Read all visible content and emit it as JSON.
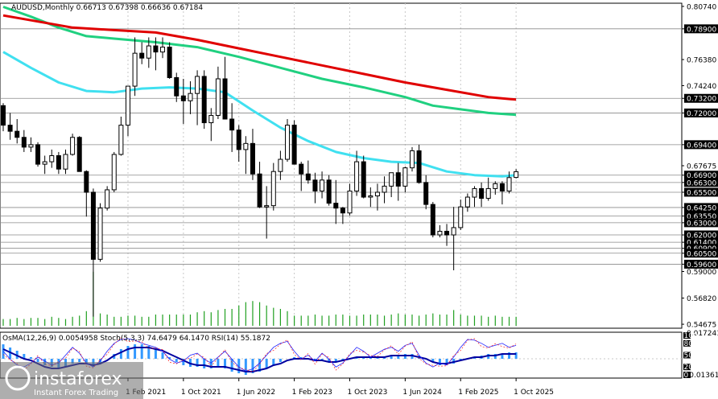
{
  "header": {
    "main": "AUDUSD,Monthly  0.66713 0.67398 0.66636 0.67184",
    "osc": "OsMA(12,26,9) 0.0054958  Stoch(5,3,3) 74.6479 64.1470  RSI(14) 55.1872"
  },
  "watermark": {
    "brand": "instaforex",
    "tagline": "Instant Forex Trading"
  },
  "colors": {
    "bull": "#000000",
    "bear": "#000000",
    "ma_red": "#e00000",
    "ma_green": "#20d080",
    "ma_cyan": "#40e0f0",
    "volume": "#20a020",
    "osma": "#3399ff",
    "osc_line": "#0000a0",
    "stoch_main": "#2020ff",
    "stoch_signal": "#ff2020",
    "rsi": "#4040ff",
    "label_box": "#000000"
  },
  "chart_data": {
    "type": "candlestick",
    "symbol": "AUDUSD",
    "timeframe": "Monthly",
    "ylim": [
      0.5435,
      0.81
    ],
    "price_ticks": [
      "0.80740",
      "0.78900",
      "0.76380",
      "0.74240",
      "0.73200",
      "0.72000",
      "0.69400",
      "0.67675",
      "0.66900",
      "0.66300",
      "0.65500",
      "0.64250",
      "0.63550",
      "0.63000",
      "0.62000",
      "0.61400",
      "0.60900",
      "0.60500",
      "0.59600",
      "0.59000",
      "0.56820",
      "0.54675"
    ],
    "level_lines": [
      0.789,
      0.732,
      0.72,
      0.694,
      0.669,
      0.663,
      0.655,
      0.6425,
      0.6355,
      0.63,
      0.62,
      0.614,
      0.609,
      0.605,
      0.596
    ],
    "x_labels": [
      "1 Feb 2021",
      "1 Oct 2021",
      "1 Jun 2022",
      "1 Feb 2023",
      "1 Oct 2023",
      "1 Jun 2024",
      "1 Feb 2025",
      "1 Oct 2025"
    ],
    "x_label_index": [
      18,
      26,
      34,
      42,
      50,
      58,
      66,
      74
    ],
    "ohlc": [
      [
        0.726,
        0.728,
        0.705,
        0.71
      ],
      [
        0.71,
        0.72,
        0.698,
        0.705
      ],
      [
        0.705,
        0.715,
        0.695,
        0.7
      ],
      [
        0.7,
        0.706,
        0.688,
        0.692
      ],
      [
        0.692,
        0.7,
        0.688,
        0.694
      ],
      [
        0.694,
        0.696,
        0.676,
        0.678
      ],
      [
        0.678,
        0.685,
        0.67,
        0.68
      ],
      [
        0.68,
        0.69,
        0.675,
        0.685
      ],
      [
        0.685,
        0.688,
        0.67,
        0.674
      ],
      [
        0.674,
        0.69,
        0.67,
        0.686
      ],
      [
        0.686,
        0.703,
        0.685,
        0.7
      ],
      [
        0.7,
        0.701,
        0.672,
        0.672
      ],
      [
        0.672,
        0.673,
        0.635,
        0.655
      ],
      [
        0.655,
        0.658,
        0.553,
        0.6
      ],
      [
        0.6,
        0.646,
        0.598,
        0.642
      ],
      [
        0.642,
        0.66,
        0.64,
        0.657
      ],
      [
        0.657,
        0.688,
        0.655,
        0.686
      ],
      [
        0.686,
        0.717,
        0.685,
        0.71
      ],
      [
        0.71,
        0.742,
        0.701,
        0.742
      ],
      [
        0.742,
        0.782,
        0.734,
        0.769
      ],
      [
        0.769,
        0.778,
        0.76,
        0.765
      ],
      [
        0.765,
        0.782,
        0.757,
        0.775
      ],
      [
        0.775,
        0.782,
        0.755,
        0.77
      ],
      [
        0.77,
        0.782,
        0.765,
        0.774
      ],
      [
        0.774,
        0.778,
        0.748,
        0.749
      ],
      [
        0.749,
        0.753,
        0.729,
        0.734
      ],
      [
        0.734,
        0.748,
        0.711,
        0.73
      ],
      [
        0.73,
        0.746,
        0.719,
        0.736
      ],
      [
        0.736,
        0.755,
        0.71,
        0.75
      ],
      [
        0.75,
        0.755,
        0.707,
        0.712
      ],
      [
        0.712,
        0.724,
        0.697,
        0.718
      ],
      [
        0.718,
        0.758,
        0.715,
        0.748
      ],
      [
        0.748,
        0.766,
        0.715,
        0.715
      ],
      [
        0.715,
        0.728,
        0.688,
        0.706
      ],
      [
        0.706,
        0.71,
        0.68,
        0.69
      ],
      [
        0.69,
        0.701,
        0.67,
        0.695
      ],
      [
        0.695,
        0.707,
        0.665,
        0.67
      ],
      [
        0.67,
        0.68,
        0.642,
        0.643
      ],
      [
        0.643,
        0.66,
        0.617,
        0.644
      ],
      [
        0.644,
        0.679,
        0.64,
        0.672
      ],
      [
        0.672,
        0.689,
        0.665,
        0.682
      ],
      [
        0.682,
        0.715,
        0.68,
        0.71
      ],
      [
        0.71,
        0.714,
        0.678,
        0.678
      ],
      [
        0.678,
        0.68,
        0.656,
        0.67
      ],
      [
        0.67,
        0.681,
        0.662,
        0.665
      ],
      [
        0.665,
        0.671,
        0.646,
        0.656
      ],
      [
        0.656,
        0.672,
        0.65,
        0.665
      ],
      [
        0.665,
        0.669,
        0.644,
        0.646
      ],
      [
        0.646,
        0.665,
        0.629,
        0.642
      ],
      [
        0.642,
        0.643,
        0.629,
        0.638
      ],
      [
        0.638,
        0.662,
        0.636,
        0.656
      ],
      [
        0.656,
        0.689,
        0.652,
        0.68
      ],
      [
        0.68,
        0.685,
        0.65,
        0.651
      ],
      [
        0.651,
        0.659,
        0.643,
        0.652
      ],
      [
        0.652,
        0.662,
        0.64,
        0.655
      ],
      [
        0.655,
        0.668,
        0.646,
        0.66
      ],
      [
        0.66,
        0.671,
        0.651,
        0.671
      ],
      [
        0.671,
        0.679,
        0.648,
        0.66
      ],
      [
        0.66,
        0.676,
        0.655,
        0.675
      ],
      [
        0.675,
        0.692,
        0.672,
        0.689
      ],
      [
        0.689,
        0.694,
        0.662,
        0.663
      ],
      [
        0.663,
        0.669,
        0.641,
        0.645
      ],
      [
        0.645,
        0.647,
        0.618,
        0.62
      ],
      [
        0.62,
        0.628,
        0.618,
        0.623
      ],
      [
        0.623,
        0.629,
        0.611,
        0.62
      ],
      [
        0.62,
        0.643,
        0.591,
        0.626
      ],
      [
        0.626,
        0.649,
        0.624,
        0.643
      ],
      [
        0.643,
        0.654,
        0.639,
        0.651
      ],
      [
        0.651,
        0.66,
        0.643,
        0.658
      ],
      [
        0.658,
        0.663,
        0.643,
        0.65
      ],
      [
        0.65,
        0.667,
        0.648,
        0.658
      ],
      [
        0.658,
        0.664,
        0.653,
        0.662
      ],
      [
        0.662,
        0.664,
        0.645,
        0.656
      ],
      [
        0.656,
        0.672,
        0.654,
        0.667
      ],
      [
        0.66713,
        0.67398,
        0.66636,
        0.67184
      ]
    ],
    "ma_red": [
      [
        0,
        0.8
      ],
      [
        4,
        0.796
      ],
      [
        10,
        0.79
      ],
      [
        16,
        0.788
      ],
      [
        22,
        0.786
      ],
      [
        28,
        0.78
      ],
      [
        34,
        0.773
      ],
      [
        40,
        0.766
      ],
      [
        46,
        0.759
      ],
      [
        52,
        0.752
      ],
      [
        58,
        0.745
      ],
      [
        64,
        0.739
      ],
      [
        70,
        0.733
      ],
      [
        74,
        0.731
      ]
    ],
    "ma_green": [
      [
        0,
        0.807
      ],
      [
        4,
        0.799
      ],
      [
        8,
        0.79
      ],
      [
        12,
        0.783
      ],
      [
        16,
        0.781
      ],
      [
        22,
        0.778
      ],
      [
        28,
        0.774
      ],
      [
        34,
        0.766
      ],
      [
        40,
        0.757
      ],
      [
        46,
        0.748
      ],
      [
        52,
        0.741
      ],
      [
        58,
        0.733
      ],
      [
        62,
        0.726
      ],
      [
        66,
        0.723
      ],
      [
        70,
        0.72
      ],
      [
        74,
        0.7185
      ]
    ],
    "ma_cyan": [
      [
        0,
        0.77
      ],
      [
        4,
        0.757
      ],
      [
        8,
        0.745
      ],
      [
        12,
        0.738
      ],
      [
        16,
        0.737
      ],
      [
        20,
        0.74
      ],
      [
        24,
        0.741
      ],
      [
        28,
        0.74
      ],
      [
        32,
        0.737
      ],
      [
        36,
        0.722
      ],
      [
        40,
        0.708
      ],
      [
        44,
        0.697
      ],
      [
        48,
        0.688
      ],
      [
        52,
        0.683
      ],
      [
        56,
        0.68
      ],
      [
        60,
        0.679
      ],
      [
        64,
        0.672
      ],
      [
        68,
        0.669
      ],
      [
        72,
        0.668
      ],
      [
        74,
        0.669
      ]
    ],
    "volume": [
      0.06,
      0.06,
      0.07,
      0.06,
      0.07,
      0.07,
      0.06,
      0.08,
      0.07,
      0.06,
      0.08,
      0.09,
      0.13,
      0.48,
      0.11,
      0.1,
      0.08,
      0.08,
      0.09,
      0.09,
      0.08,
      0.08,
      0.1,
      0.1,
      0.1,
      0.1,
      0.1,
      0.1,
      0.12,
      0.13,
      0.12,
      0.14,
      0.15,
      0.15,
      0.18,
      0.21,
      0.22,
      0.21,
      0.18,
      0.16,
      0.15,
      0.13,
      0.09,
      0.09,
      0.09,
      0.1,
      0.09,
      0.09,
      0.1,
      0.1,
      0.09,
      0.09,
      0.1,
      0.1,
      0.1,
      0.09,
      0.1,
      0.11,
      0.1,
      0.1,
      0.09,
      0.1,
      0.11,
      0.1,
      0.1,
      0.14,
      0.1,
      0.09,
      0.09,
      0.09,
      0.08,
      0.09,
      0.08,
      0.08,
      0.08
    ],
    "osma": [
      0.9,
      0.7,
      0.5,
      0.3,
      0.1,
      -0.2,
      -0.4,
      -0.5,
      -0.6,
      -0.5,
      -0.3,
      -0.2,
      -0.3,
      -0.5,
      -0.3,
      0.0,
      0.3,
      0.6,
      0.8,
      0.9,
      0.9,
      0.8,
      0.6,
      0.4,
      0.1,
      -0.2,
      -0.4,
      -0.5,
      -0.5,
      -0.6,
      -0.6,
      -0.5,
      -0.6,
      -0.8,
      -0.9,
      -1.0,
      -0.9,
      -0.8,
      -0.6,
      -0.4,
      -0.2,
      0.0,
      0.1,
      0.1,
      0.0,
      -0.1,
      -0.1,
      -0.2,
      -0.2,
      -0.1,
      0.0,
      0.1,
      0.1,
      0.1,
      0.1,
      0.1,
      0.2,
      0.2,
      0.3,
      0.3,
      0.2,
      0.0,
      -0.2,
      -0.4,
      -0.4,
      -0.3,
      -0.1,
      0.0,
      0.1,
      0.2,
      0.3,
      0.3,
      0.3,
      0.4,
      0.4
    ],
    "osc_line": [
      0.6,
      0.4,
      0.2,
      0.0,
      -0.1,
      -0.3,
      -0.5,
      -0.6,
      -0.6,
      -0.5,
      -0.4,
      -0.3,
      -0.3,
      -0.4,
      -0.3,
      -0.1,
      0.2,
      0.4,
      0.6,
      0.7,
      0.7,
      0.7,
      0.6,
      0.5,
      0.3,
      0.1,
      -0.1,
      -0.3,
      -0.4,
      -0.4,
      -0.5,
      -0.5,
      -0.5,
      -0.6,
      -0.7,
      -0.8,
      -0.8,
      -0.7,
      -0.6,
      -0.4,
      -0.3,
      -0.1,
      0.0,
      0.0,
      0.0,
      -0.1,
      -0.1,
      -0.2,
      -0.2,
      -0.1,
      0.0,
      0.1,
      0.1,
      0.1,
      0.1,
      0.1,
      0.2,
      0.2,
      0.2,
      0.2,
      0.1,
      0.0,
      -0.2,
      -0.3,
      -0.3,
      -0.2,
      -0.1,
      0.0,
      0.1,
      0.1,
      0.2,
      0.2,
      0.3,
      0.3,
      0.3
    ],
    "stoch": [
      60,
      40,
      25,
      20,
      30,
      45,
      35,
      25,
      30,
      50,
      70,
      55,
      30,
      20,
      35,
      60,
      80,
      90,
      92,
      88,
      80,
      75,
      70,
      60,
      40,
      30,
      35,
      50,
      55,
      40,
      30,
      45,
      60,
      40,
      20,
      10,
      15,
      30,
      50,
      70,
      80,
      85,
      60,
      40,
      50,
      35,
      55,
      40,
      20,
      30,
      50,
      70,
      60,
      45,
      55,
      65,
      70,
      60,
      75,
      80,
      50,
      30,
      20,
      30,
      25,
      45,
      70,
      90,
      88,
      80,
      70,
      75,
      80,
      70,
      74.6
    ],
    "rsi_last": 55.1872
  },
  "osc_scale": {
    "top": "0.017241",
    "bottom": "-0.013615"
  },
  "osc_ticks": [
    "100",
    "80",
    "50",
    "20",
    "0"
  ]
}
